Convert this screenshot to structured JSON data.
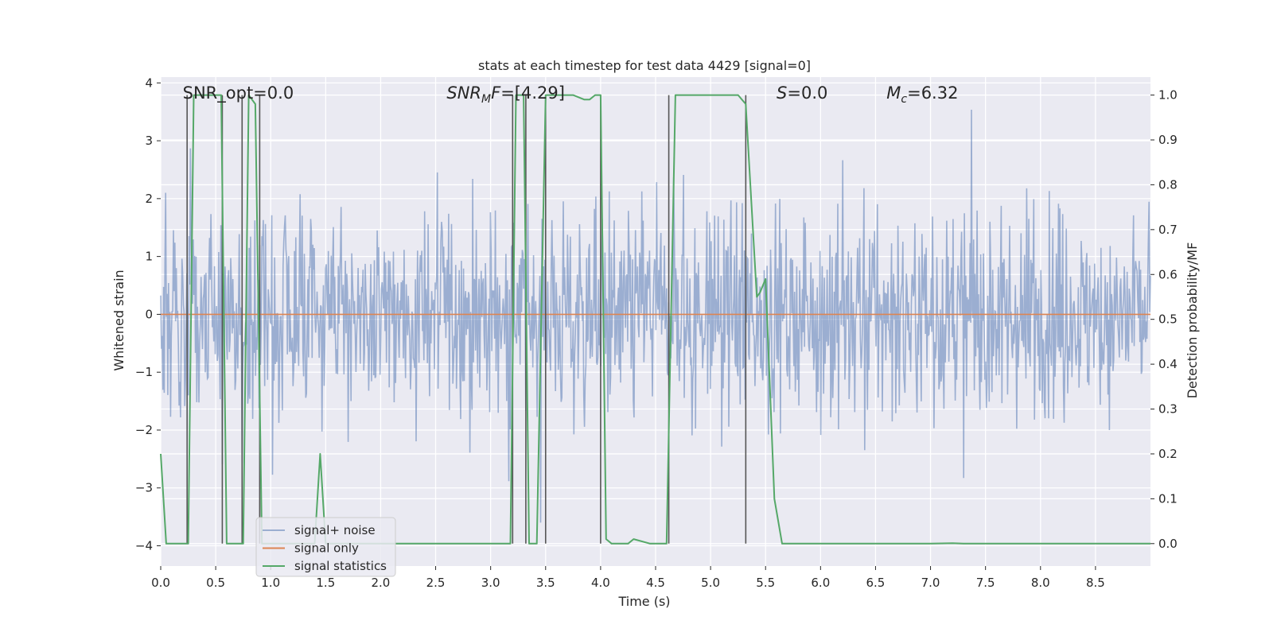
{
  "chart_data": {
    "type": "line",
    "title": "stats at each timestep for test data 4429 [signal=0]",
    "xlabel": "Time (s)",
    "ylabel_left": "Whitened strain",
    "ylabel_right": "Detection probability/MF",
    "xlim": [
      0.0,
      9.0
    ],
    "ylim_left": [
      -4.35,
      4.1
    ],
    "ylim_right": [
      -0.05,
      1.04
    ],
    "xticks": [
      0.0,
      0.5,
      1.0,
      1.5,
      2.0,
      2.5,
      3.0,
      3.5,
      4.0,
      4.5,
      5.0,
      5.5,
      6.0,
      6.5,
      7.0,
      7.5,
      8.0,
      8.5
    ],
    "xtick_labels": [
      "0.0",
      "0.5",
      "1.0",
      "1.5",
      "2.0",
      "2.5",
      "3.0",
      "3.5",
      "4.0",
      "4.5",
      "5.0",
      "5.5",
      "6.0",
      "6.5",
      "7.0",
      "7.5",
      "8.0",
      "8.5"
    ],
    "yticks_left": [
      4,
      3,
      2,
      1,
      0,
      -1,
      -2,
      -3,
      -4
    ],
    "ytick_labels_left": [
      "4",
      "3",
      "2",
      "1",
      "0",
      "−1",
      "−2",
      "−3",
      "−4"
    ],
    "yticks_right": [
      1.0,
      0.9,
      0.8,
      0.7,
      0.6,
      0.5,
      0.4,
      0.3,
      0.2,
      0.1,
      0.0
    ],
    "ytick_labels_right": [
      "1.0",
      "0.9",
      "0.8",
      "0.7",
      "0.6",
      "0.5",
      "0.4",
      "0.3",
      "0.2",
      "0.1",
      "0.0"
    ],
    "grid": true,
    "background": "#eaeaf2",
    "annotations": [
      {
        "text": "SNR_opt=0.0",
        "x": 0.2
      },
      {
        "text": "SNR_MF=[4.29]",
        "x": 2.6
      },
      {
        "text": "S=0.0",
        "x": 5.6
      },
      {
        "text": "M_c=6.32",
        "x": 6.6
      }
    ],
    "series": [
      {
        "name": "signal+ noise",
        "axis": "left",
        "color": "#4c72b0",
        "opacity": 0.5,
        "description_values": "dense whitened-strain noise, mostly within about −2 to 2.5, peaks near 3.8",
        "n_points": 1400,
        "amplitude": 0.75,
        "seed": 4429
      },
      {
        "name": "signal only",
        "axis": "left",
        "color": "#dd8452",
        "x": [
          0.0,
          9.0
        ],
        "y": [
          0.0,
          0.0
        ]
      },
      {
        "name": "signal statistics",
        "axis": "right",
        "color": "#55a868",
        "x": [
          0.0,
          0.05,
          0.25,
          0.3,
          0.55,
          0.6,
          0.75,
          0.8,
          0.86,
          0.92,
          1.4,
          1.45,
          1.5,
          3.18,
          3.23,
          3.3,
          3.35,
          3.42,
          3.5,
          3.6,
          3.75,
          3.85,
          3.9,
          3.95,
          4.0,
          4.05,
          4.1,
          4.25,
          4.3,
          4.45,
          4.6,
          4.68,
          5.25,
          5.32,
          5.42,
          5.45,
          5.5,
          5.58,
          5.65,
          6.0,
          7.0,
          7.2,
          7.3,
          9.0
        ],
        "y": [
          0.2,
          0.0,
          0.0,
          1.0,
          1.0,
          0.0,
          0.0,
          1.0,
          0.98,
          0.0,
          0.0,
          0.2,
          0.0,
          0.0,
          1.0,
          1.0,
          0.0,
          0.0,
          1.0,
          1.0,
          1.0,
          0.99,
          0.99,
          1.0,
          1.0,
          0.01,
          0.0,
          0.0,
          0.01,
          0.0,
          0.0,
          1.0,
          1.0,
          0.98,
          0.55,
          0.56,
          0.59,
          0.1,
          0.0,
          0.0,
          0.0,
          0.001,
          0.0,
          0.0
        ]
      }
    ],
    "vertical_lines": {
      "color": "#555555",
      "axis": "right",
      "lines": [
        {
          "x": 0.24,
          "y_from": 0.0,
          "y_to": 1.0
        },
        {
          "x": 0.56,
          "y_from": 0.0,
          "y_to": 1.0
        },
        {
          "x": 0.74,
          "y_from": 0.0,
          "y_to": 1.0
        },
        {
          "x": 0.9,
          "y_from": 0.0,
          "y_to": 1.0
        },
        {
          "x": 3.2,
          "y_from": 0.0,
          "y_to": 1.0
        },
        {
          "x": 3.32,
          "y_from": 0.0,
          "y_to": 1.0
        },
        {
          "x": 3.5,
          "y_from": 0.0,
          "y_to": 1.0
        },
        {
          "x": 4.0,
          "y_from": 0.0,
          "y_to": 1.0
        },
        {
          "x": 4.62,
          "y_from": 0.0,
          "y_to": 1.0
        },
        {
          "x": 5.32,
          "y_from": 0.0,
          "y_to": 1.0
        }
      ]
    },
    "legend": {
      "placement": "lower-left",
      "entries": [
        "signal+ noise",
        "signal only",
        "signal statistics"
      ]
    }
  }
}
